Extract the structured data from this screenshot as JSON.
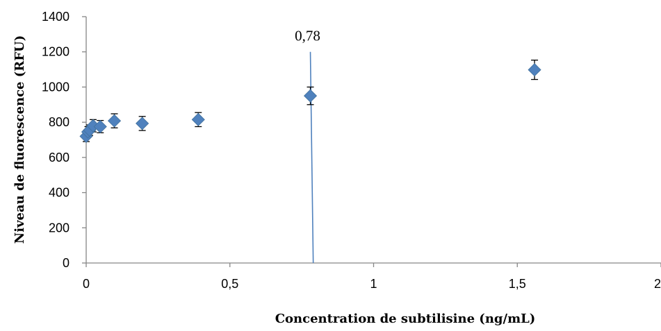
{
  "chart_data": {
    "type": "scatter",
    "title": "",
    "xlabel": "Concentration de subtilisine (ng/mL)",
    "ylabel": "Niveau de fluorescence (RFU)",
    "xlim": [
      0,
      2
    ],
    "ylim": [
      0,
      1400
    ],
    "grid": false,
    "legend": "none",
    "x_ticks": [
      "0",
      "0,5",
      "1",
      "1,5",
      "2"
    ],
    "x_tick_values": [
      0,
      0.5,
      1,
      1.5,
      2
    ],
    "y_ticks": [
      "0",
      "200",
      "400",
      "600",
      "800",
      "1000",
      "1200",
      "1400"
    ],
    "y_tick_values": [
      0,
      200,
      400,
      600,
      800,
      1000,
      1200,
      1400
    ],
    "points": [
      {
        "x": 0.0,
        "y": 720,
        "err": 30
      },
      {
        "x": 0.006,
        "y": 745,
        "err": 30
      },
      {
        "x": 0.012,
        "y": 755,
        "err": 30
      },
      {
        "x": 0.024,
        "y": 780,
        "err": 35
      },
      {
        "x": 0.049,
        "y": 775,
        "err": 35
      },
      {
        "x": 0.098,
        "y": 808,
        "err": 40
      },
      {
        "x": 0.195,
        "y": 793,
        "err": 40
      },
      {
        "x": 0.39,
        "y": 815,
        "err": 40
      },
      {
        "x": 0.78,
        "y": 950,
        "err": 50
      },
      {
        "x": 1.56,
        "y": 1098,
        "err": 55
      }
    ],
    "marker_color": "#4F81BD",
    "annotation": {
      "label": "0,78",
      "line_top": {
        "x": 0.78,
        "y": 1200
      },
      "line_bottom": {
        "x": 0.79,
        "y": 0
      },
      "color": "#4F81BD"
    }
  }
}
